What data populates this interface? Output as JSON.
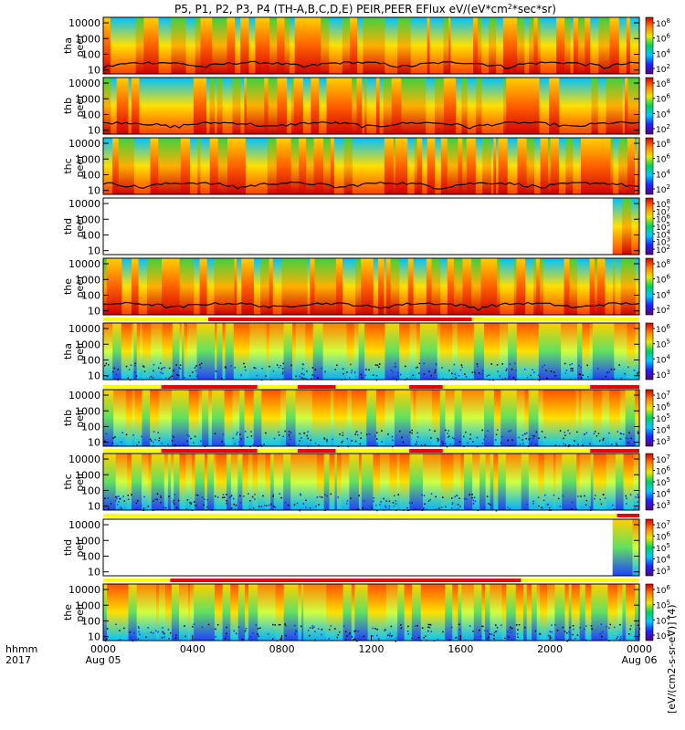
{
  "chart_data": {
    "type": "heatmap",
    "title_pre": "P5, P1, P2, P3, P4 (TH-A,B,C,D,E) PEIR,PEER EFlux eV/(eV*cm",
    "title_sup": "2",
    "title_post": "*sec*sr)",
    "x_tick_labels": [
      "0000",
      "0400",
      "0800",
      "1200",
      "1600",
      "2000",
      "0000"
    ],
    "x_date_labels": [
      "Aug 05",
      "Aug 06"
    ],
    "x_axis_caption": [
      "hhmm",
      "2017"
    ],
    "x_range_hours": [
      0,
      24
    ],
    "y_scale": "log",
    "y_tick_labels": [
      "10",
      "100",
      "1000",
      "10000"
    ],
    "colorbar_caption": "[eV/(cm2-s-sr-eV)] (4)",
    "colormap": [
      "#5a0078",
      "#2020ff",
      "#00c8ff",
      "#00d060",
      "#e8e800",
      "#ff8000",
      "#d00000"
    ],
    "panels": [
      {
        "id": "tha-peer",
        "probe": "tha",
        "instrument": "peer",
        "species": "electron",
        "coverage": [
          0,
          24
        ],
        "cbar_exponents": [
          "2",
          "4",
          "6",
          "8"
        ]
      },
      {
        "id": "thb-peer",
        "probe": "thb",
        "instrument": "peer",
        "species": "electron",
        "coverage": [
          0,
          24
        ],
        "cbar_exponents": [
          "2",
          "4",
          "6",
          "8"
        ]
      },
      {
        "id": "thc-peer",
        "probe": "thc",
        "instrument": "peer",
        "species": "electron",
        "coverage": [
          0,
          24
        ],
        "cbar_exponents": [
          "2",
          "4",
          "6",
          "8"
        ]
      },
      {
        "id": "thd-peer",
        "probe": "thd",
        "instrument": "peer",
        "species": "electron",
        "coverage": [
          22.8,
          24
        ],
        "cbar_exponents": [
          "2",
          "3",
          "4",
          "5",
          "6",
          "7",
          "8"
        ]
      },
      {
        "id": "the-peer",
        "probe": "the",
        "instrument": "peer",
        "species": "electron",
        "coverage": [
          0,
          24
        ],
        "cbar_exponents": [
          "2",
          "4",
          "6",
          "8"
        ],
        "bar": [
          [
            0,
            4.7,
            "yellow"
          ],
          [
            4.7,
            16.5,
            "red"
          ],
          [
            16.5,
            24,
            "yellow"
          ]
        ]
      },
      {
        "id": "tha-peir",
        "probe": "tha",
        "instrument": "peir",
        "species": "ion",
        "coverage": [
          0,
          24
        ],
        "cbar_exponents": [
          "3",
          "4",
          "5",
          "6"
        ],
        "bar": [
          [
            0,
            2.6,
            "yellow"
          ],
          [
            2.6,
            6.9,
            "red"
          ],
          [
            6.9,
            8.7,
            "yellow"
          ],
          [
            8.7,
            10.4,
            "red"
          ],
          [
            10.4,
            13.7,
            "yellow"
          ],
          [
            13.7,
            15.2,
            "red"
          ],
          [
            15.2,
            21.8,
            "yellow"
          ],
          [
            21.8,
            24,
            "red"
          ]
        ]
      },
      {
        "id": "thb-peir",
        "probe": "thb",
        "instrument": "peir",
        "species": "ion",
        "coverage": [
          0,
          24
        ],
        "cbar_exponents": [
          "3",
          "4",
          "5",
          "6",
          "7"
        ],
        "bar": [
          [
            0,
            2.6,
            "yellow"
          ],
          [
            2.6,
            6.9,
            "red"
          ],
          [
            6.9,
            8.7,
            "yellow"
          ],
          [
            8.7,
            10.4,
            "red"
          ],
          [
            10.4,
            13.7,
            "yellow"
          ],
          [
            13.7,
            15.2,
            "red"
          ],
          [
            15.2,
            21.8,
            "yellow"
          ],
          [
            21.8,
            24,
            "red"
          ]
        ]
      },
      {
        "id": "thc-peir",
        "probe": "thc",
        "instrument": "peir",
        "species": "ion",
        "coverage": [
          0,
          24
        ],
        "cbar_exponents": [
          "3",
          "4",
          "5",
          "6",
          "7"
        ],
        "bar": [
          [
            0,
            23.0,
            "yellow"
          ],
          [
            23.0,
            24,
            "red"
          ]
        ]
      },
      {
        "id": "thd-peir",
        "probe": "thd",
        "instrument": "peir",
        "species": "ion",
        "coverage": [
          22.8,
          24
        ],
        "cbar_exponents": [
          "3",
          "4",
          "5",
          "6",
          "7"
        ],
        "bar": [
          [
            0,
            3.0,
            "yellow"
          ],
          [
            3.0,
            18.7,
            "red"
          ],
          [
            18.7,
            24,
            "yellow"
          ]
        ]
      },
      {
        "id": "the-peir",
        "probe": "the",
        "instrument": "peir",
        "species": "ion",
        "coverage": [
          0,
          24
        ],
        "cbar_exponents": [
          "3",
          "4",
          "5",
          "6"
        ]
      }
    ]
  }
}
